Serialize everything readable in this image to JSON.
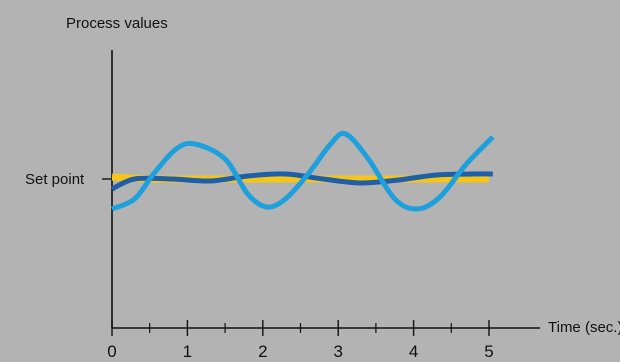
{
  "chart_data": {
    "type": "line",
    "ylabel": "Process values",
    "xlabel": "Time (sec.)",
    "setpoint_label": "Set point",
    "x_ticks": [
      "0",
      "1",
      "2",
      "3",
      "4",
      "5"
    ],
    "xlim": [
      0,
      5
    ],
    "ylim": [
      -1.2,
      1.2
    ],
    "legend": "none",
    "grid": false,
    "series": [
      {
        "color": "#f5c518",
        "x": [
          0,
          0.5,
          1,
          1.5,
          2,
          2.5,
          3,
          3.5,
          4,
          4.5,
          5
        ],
        "y": [
          0.02,
          0.0,
          0.0,
          0.0,
          0.0,
          0.0,
          0.0,
          0.0,
          0.0,
          0.0,
          0.0
        ]
      },
      {
        "color": "#1f5fa8",
        "x": [
          0,
          0.3,
          0.8,
          1.3,
          1.8,
          2.3,
          2.8,
          3.3,
          3.8,
          4.3,
          4.8,
          5.05
        ],
        "y": [
          -0.1,
          0.0,
          0.0,
          -0.02,
          0.03,
          0.05,
          0.0,
          -0.04,
          -0.01,
          0.04,
          0.05,
          0.05
        ]
      },
      {
        "color": "#1ea0dc",
        "x": [
          0,
          0.3,
          0.55,
          0.85,
          1.1,
          1.5,
          1.8,
          2.05,
          2.3,
          2.6,
          2.9,
          3.1,
          3.4,
          3.75,
          4.05,
          4.35,
          4.7,
          5.05
        ],
        "y": [
          -0.3,
          -0.2,
          0.05,
          0.3,
          0.35,
          0.2,
          -0.15,
          -0.28,
          -0.2,
          0.05,
          0.35,
          0.45,
          0.2,
          -0.2,
          -0.3,
          -0.18,
          0.15,
          0.42
        ]
      }
    ]
  }
}
